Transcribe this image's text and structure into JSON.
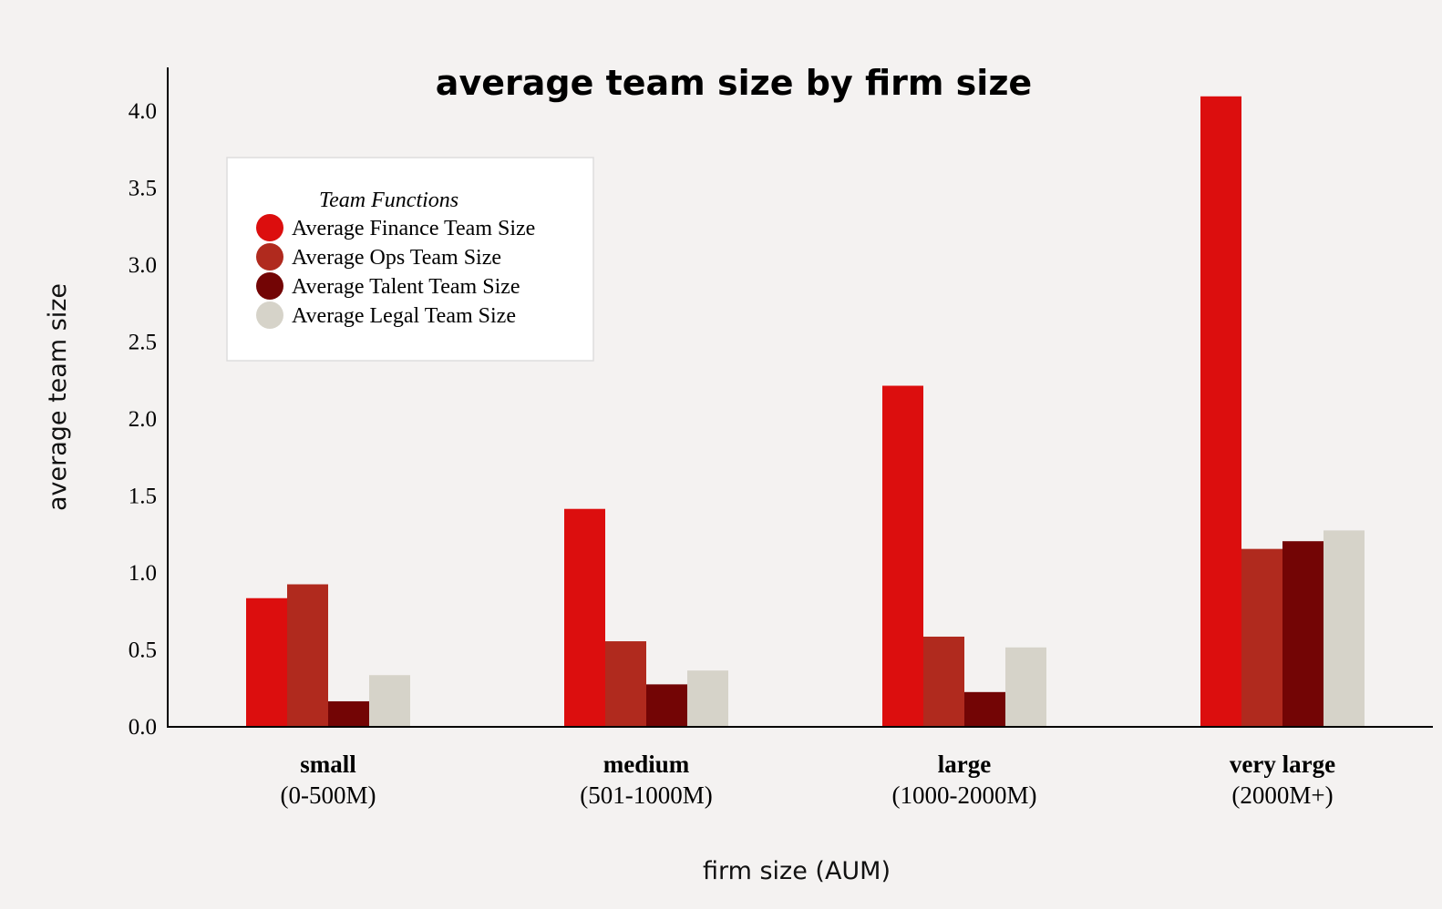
{
  "chart_data": {
    "type": "bar",
    "title": "average team size by firm size",
    "xlabel": "firm size (AUM)",
    "ylabel": "average team size",
    "ylim": [
      0,
      4.2
    ],
    "yticks": [
      "0.0",
      "0.5",
      "1.0",
      "1.5",
      "2.0",
      "2.5",
      "3.0",
      "3.5",
      "4.0"
    ],
    "categories": [
      {
        "name": "small",
        "range": "(0-500M)"
      },
      {
        "name": "medium",
        "range": "(501-1000M)"
      },
      {
        "name": "large",
        "range": "(1000-2000M)"
      },
      {
        "name": "very large",
        "range": "(2000M+)"
      }
    ],
    "series": [
      {
        "name": "Average Finance Team Size",
        "color": "#dc0e0e",
        "values": [
          0.83,
          1.41,
          2.21,
          4.09
        ]
      },
      {
        "name": "Average Ops Team Size",
        "color": "#b02a1e",
        "values": [
          0.92,
          0.55,
          0.58,
          1.15
        ]
      },
      {
        "name": "Average Talent Team Size",
        "color": "#730505",
        "values": [
          0.16,
          0.27,
          0.22,
          1.2
        ]
      },
      {
        "name": "Average Legal Team Size",
        "color": "#d6d3c9",
        "values": [
          0.33,
          0.36,
          0.51,
          1.27
        ]
      }
    ],
    "legend": {
      "title": "Team Functions",
      "position": "top-left"
    },
    "grid": false
  }
}
